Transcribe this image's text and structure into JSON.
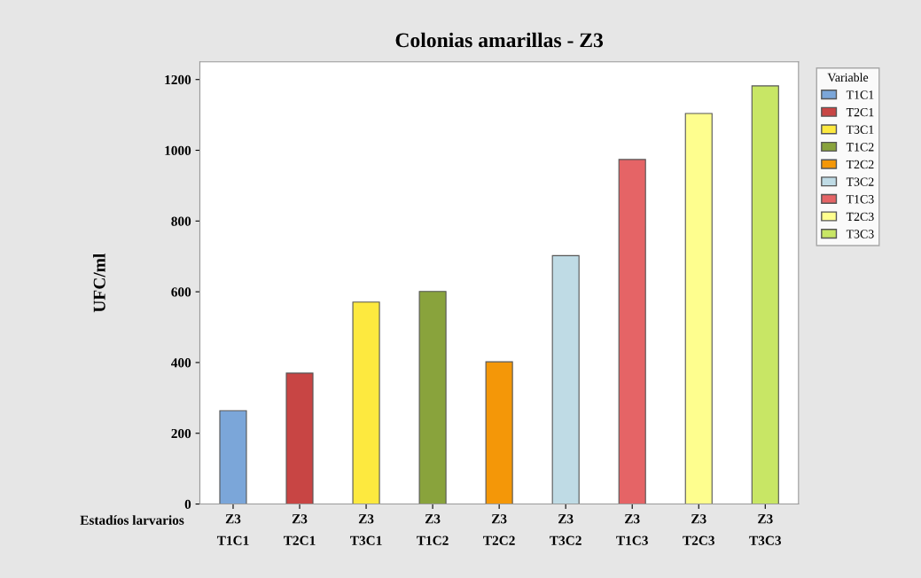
{
  "chart_data": {
    "type": "bar",
    "title": "Colonias amarillas - Z3",
    "ylabel": "UFC/ml",
    "xlabel": "Estadíos larvarios",
    "categories": [
      "Z3\nT1C1",
      "Z3\nT2C1",
      "Z3\nT3C1",
      "Z3\nT1C2",
      "Z3\nT2C2",
      "Z3\nT3C2",
      "Z3\nT1C3",
      "Z3\nT2C3",
      "Z3\nT3C3"
    ],
    "legend_title": "Variable",
    "legend": "right",
    "series": [
      {
        "name": "T1C1",
        "color": "#7ba6d9",
        "values": [
          264,
          null,
          null,
          null,
          null,
          null,
          null,
          null,
          null
        ]
      },
      {
        "name": "T2C1",
        "color": "#c84544",
        "values": [
          null,
          370,
          null,
          null,
          null,
          null,
          null,
          null,
          null
        ]
      },
      {
        "name": "T3C1",
        "color": "#fde93f",
        "values": [
          null,
          null,
          571,
          null,
          null,
          null,
          null,
          null,
          null
        ]
      },
      {
        "name": "T1C2",
        "color": "#89a33c",
        "values": [
          null,
          null,
          null,
          601,
          null,
          null,
          null,
          null,
          null
        ]
      },
      {
        "name": "T2C2",
        "color": "#f49708",
        "values": [
          null,
          null,
          null,
          null,
          402,
          null,
          null,
          null,
          null
        ]
      },
      {
        "name": "T3C2",
        "color": "#bfdbe5",
        "values": [
          null,
          null,
          null,
          null,
          null,
          702,
          null,
          null,
          null
        ]
      },
      {
        "name": "T1C3",
        "color": "#e56466",
        "values": [
          null,
          null,
          null,
          null,
          null,
          null,
          974,
          null,
          null
        ]
      },
      {
        "name": "T2C3",
        "color": "#fefe8e",
        "values": [
          null,
          null,
          null,
          null,
          null,
          null,
          null,
          1104,
          null
        ]
      },
      {
        "name": "T3C3",
        "color": "#c8e665",
        "values": [
          null,
          null,
          null,
          null,
          null,
          null,
          null,
          null,
          1182
        ]
      }
    ],
    "ylim": [
      0,
      1250
    ],
    "yticks": [
      0,
      200,
      400,
      600,
      800,
      1000,
      1200
    ],
    "grid": false
  }
}
